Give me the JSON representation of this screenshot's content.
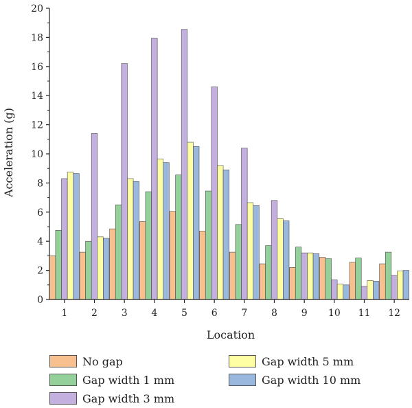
{
  "chart_data": {
    "type": "bar",
    "xlabel": "Location",
    "ylabel": "Acceleration (g)",
    "ylim": [
      0,
      20
    ],
    "yticks": [
      0,
      2,
      4,
      6,
      8,
      10,
      12,
      14,
      16,
      18,
      20
    ],
    "categories": [
      "1",
      "2",
      "3",
      "4",
      "5",
      "6",
      "7",
      "8",
      "9",
      "10",
      "11",
      "12"
    ],
    "series": [
      {
        "name": "No gap",
        "color": "#F8C08F",
        "values": [
          3.0,
          3.25,
          4.85,
          5.35,
          6.05,
          4.7,
          3.25,
          2.45,
          2.2,
          2.9,
          2.55,
          2.45
        ]
      },
      {
        "name": "Gap width 1 mm",
        "color": "#94D09A",
        "values": [
          4.75,
          4.0,
          6.5,
          7.4,
          8.55,
          7.45,
          5.15,
          3.7,
          3.6,
          2.8,
          2.85,
          3.25
        ]
      },
      {
        "name": "Gap width 3 mm",
        "color": "#C4B0DE",
        "values": [
          8.3,
          11.4,
          16.2,
          17.95,
          18.55,
          14.6,
          10.4,
          6.8,
          3.2,
          1.35,
          0.9,
          1.65
        ]
      },
      {
        "name": "Gap width 5 mm",
        "color": "#FEFEA4",
        "values": [
          8.75,
          4.3,
          8.3,
          9.65,
          10.8,
          9.2,
          6.65,
          5.55,
          3.2,
          1.05,
          1.3,
          1.95
        ]
      },
      {
        "name": "Gap width 10 mm",
        "color": "#9AB8DE",
        "values": [
          8.65,
          4.2,
          8.1,
          9.4,
          10.5,
          8.9,
          6.45,
          5.4,
          3.15,
          1.0,
          1.25,
          2.0
        ]
      }
    ]
  }
}
